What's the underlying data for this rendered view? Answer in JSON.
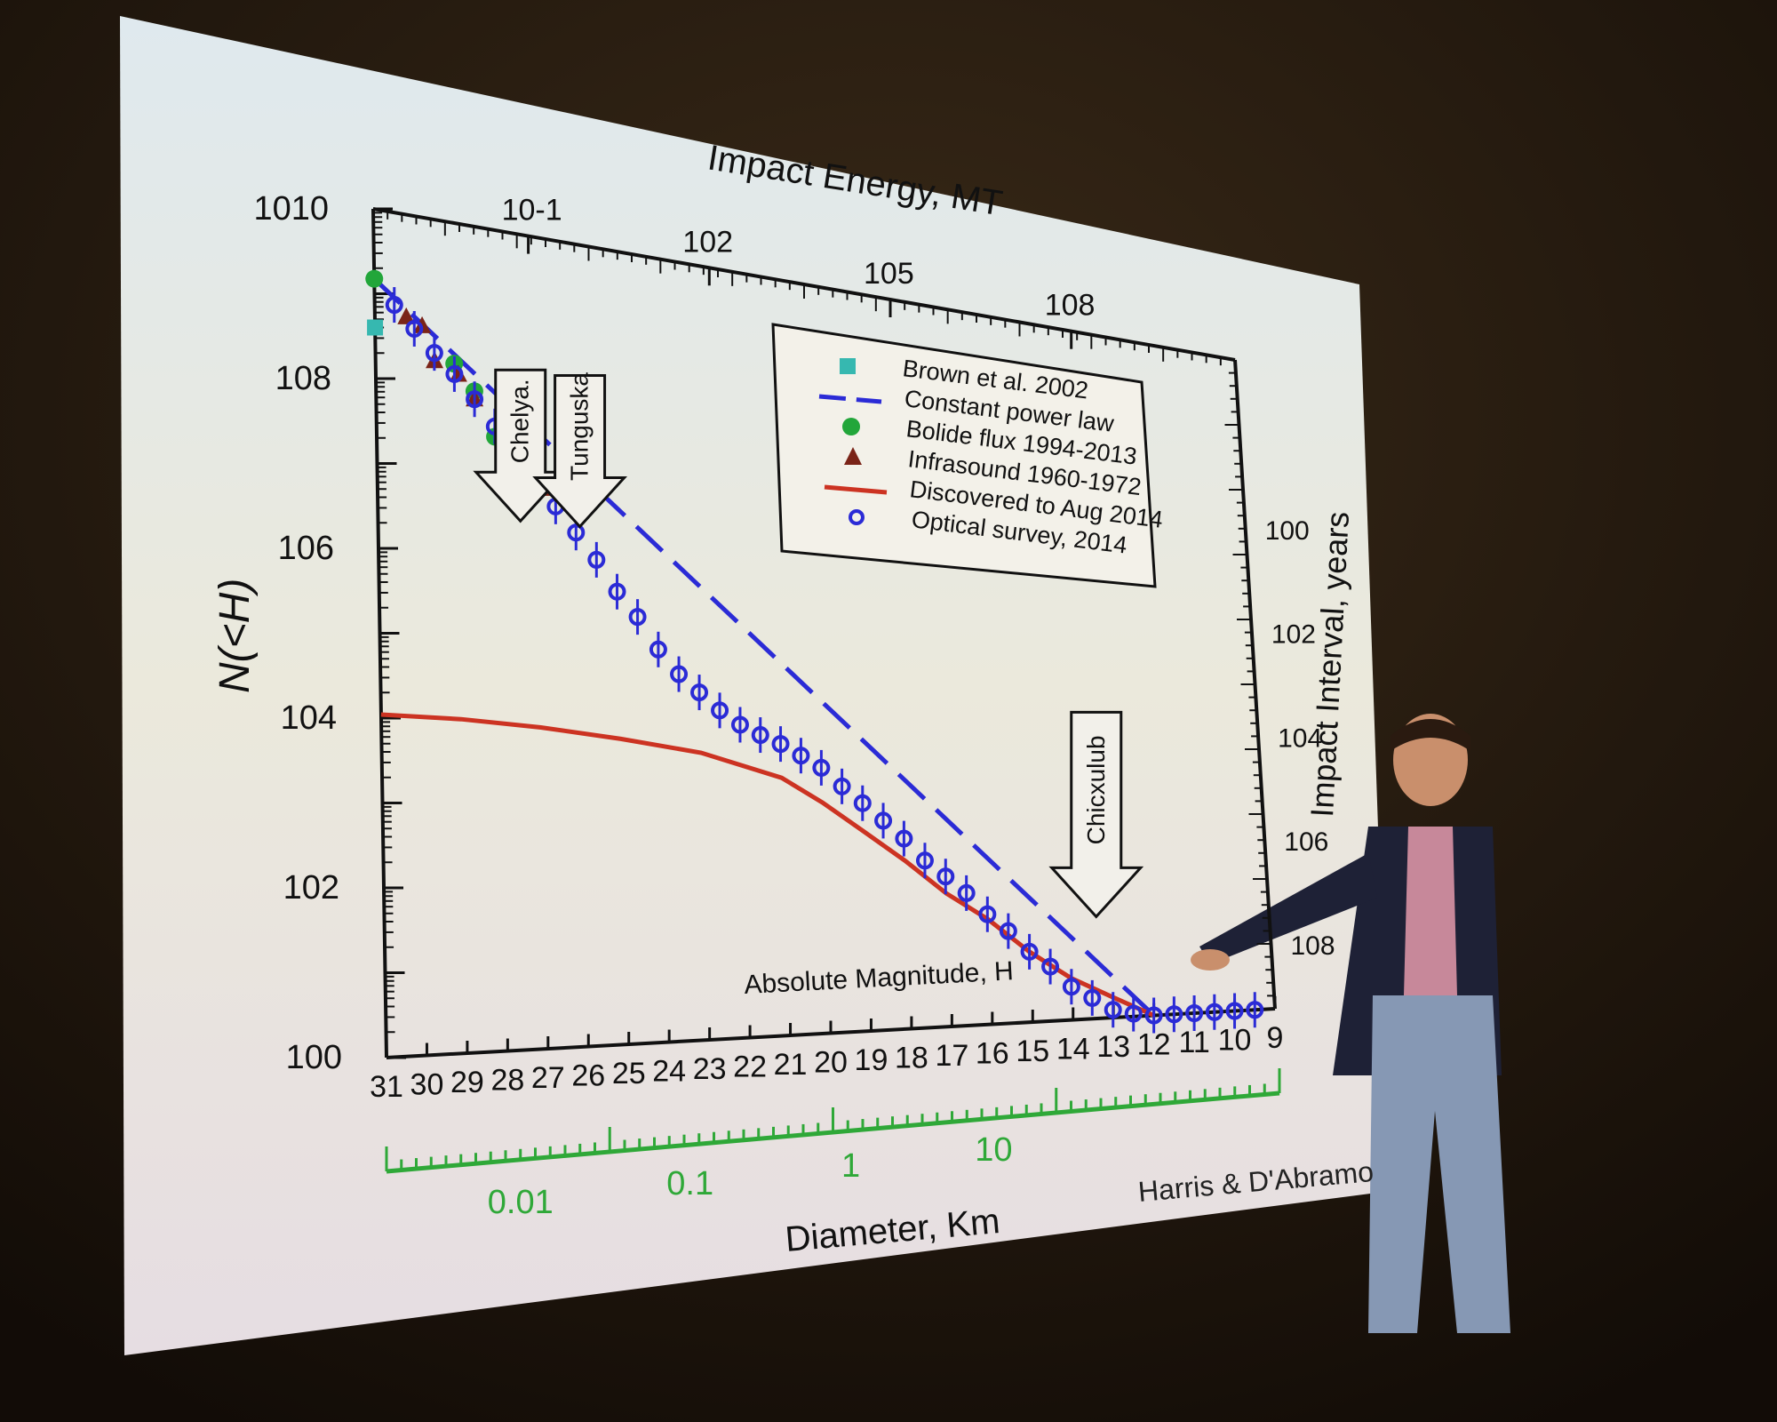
{
  "chart_data": {
    "type": "scatter",
    "title": "",
    "top_axis_label": "Impact Energy, MT",
    "top_axis_ticks": [
      "10-1",
      "102",
      "105",
      "108"
    ],
    "y_label": "N(<H)",
    "y_ticks": [
      "100",
      "102",
      "104",
      "106",
      "108",
      "1010"
    ],
    "y_scale": "log",
    "ylim": [
      1,
      10000000000
    ],
    "right_axis_label": "Impact Interval, years",
    "right_axis_ticks": [
      "100",
      "102",
      "104",
      "106",
      "108"
    ],
    "x_label_inner": "Absolute Magnitude, H",
    "xlim": [
      31,
      9
    ],
    "x_ticks": [
      "31",
      "30",
      "29",
      "28",
      "27",
      "26",
      "25",
      "24",
      "23",
      "22",
      "21",
      "20",
      "19",
      "18",
      "17",
      "16",
      "15",
      "14",
      "13",
      "12",
      "11",
      "10",
      "9"
    ],
    "diameter_axis_label": "Diameter, Km",
    "diameter_ticks": [
      "0.01",
      "0.1",
      "1",
      "10"
    ],
    "credit": "Harris & D'Abramo",
    "annotations": [
      {
        "label": "Chelya.",
        "x": 27.4
      },
      {
        "label": "Tunguska",
        "x": 25.9
      },
      {
        "label": "Chicxulub",
        "x": 13.3
      }
    ],
    "legend_position": "top-right",
    "series": [
      {
        "name": "Brown et al. 2002",
        "marker": "square",
        "color": "#36b8b0",
        "x": [
          31.0
        ],
        "y": [
          400000000
        ]
      },
      {
        "name": "Constant power law",
        "marker": "dashed-line",
        "color": "#2b2bd6",
        "x": [
          31.0,
          12.0
        ],
        "y": [
          1500000000,
          1
        ]
      },
      {
        "name": "Bolide flux 1994-2013",
        "marker": "circle",
        "color": "#22a63a",
        "x": [
          31.0,
          29.0,
          28.5,
          28.0,
          27.25
        ],
        "y": [
          1500000000,
          200000000,
          100000000,
          30000000,
          8000000
        ]
      },
      {
        "name": "Infrasound 1960-1972",
        "marker": "triangle",
        "color": "#7a2418",
        "x": [
          30.2,
          29.8,
          29.5,
          28.9,
          28.5,
          27.8,
          26.8
        ],
        "y": [
          600000000,
          500000000,
          200000000,
          150000000,
          80000000,
          40000000,
          8000000
        ]
      },
      {
        "name": "Discovered to Aug 2014",
        "marker": "line",
        "color": "#cc3322",
        "x": [
          31,
          29,
          27,
          25,
          23,
          21,
          20,
          19,
          18,
          17,
          16,
          15,
          14,
          13,
          12
        ],
        "y": [
          11000,
          10500,
          9000,
          7000,
          5000,
          2500,
          1200,
          500,
          200,
          70,
          30,
          10,
          4,
          2,
          1
        ]
      },
      {
        "name": "Optical survey, 2014",
        "marker": "open-circle",
        "color": "#2b2bd6",
        "x": [
          30.5,
          30.0,
          29.5,
          29.0,
          28.5,
          28.0,
          27.5,
          27.0,
          26.5,
          26.0,
          25.5,
          25.0,
          24.5,
          24.0,
          23.5,
          23.0,
          22.5,
          22.0,
          21.5,
          21.0,
          20.5,
          20.0,
          19.5,
          19.0,
          18.5,
          18.0,
          17.5,
          17.0,
          16.5,
          16.0,
          15.5,
          15.0,
          14.5,
          14.0,
          13.5,
          13.0,
          12.5,
          12.0,
          11.5,
          11.0,
          10.5,
          10.0,
          9.5
        ],
        "y": [
          800000000,
          450000000,
          250000000,
          150000000,
          80000000,
          40000000,
          20000000,
          10000000,
          5000000,
          2500000,
          1200000,
          500000,
          250000,
          100000,
          50000,
          30000,
          18000,
          12000,
          9000,
          7000,
          5000,
          3500,
          2000,
          1200,
          700,
          400,
          200,
          120,
          70,
          35,
          20,
          10,
          6,
          3,
          2,
          1.3,
          1.1,
          1,
          1,
          1,
          1,
          1,
          1
        ]
      }
    ]
  }
}
